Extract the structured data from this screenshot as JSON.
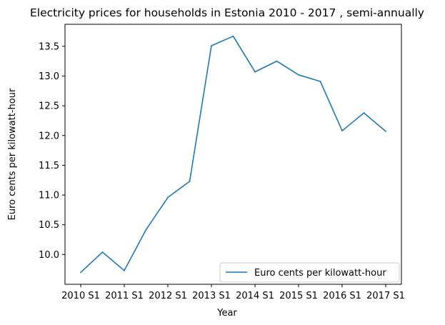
{
  "chart_data": {
    "type": "line",
    "title": "Electricity prices for households in Estonia 2010 - 2017 , semi-annually",
    "xlabel": "Year",
    "ylabel": "Euro cents per kilowatt-hour",
    "x": [
      "2010 S1",
      "2010 S2",
      "2011 S1",
      "2011 S2",
      "2012 S1",
      "2012 S2",
      "2013 S1",
      "2013 S2",
      "2014 S1",
      "2014 S2",
      "2015 S1",
      "2015 S2",
      "2016 S1",
      "2016 S2",
      "2017 S1"
    ],
    "x_ticks": [
      "2010 S1",
      "2011 S1",
      "2012 S1",
      "2013 S1",
      "2014 S1",
      "2015 S1",
      "2016 S1",
      "2017 S1"
    ],
    "series": [
      {
        "name": "Euro cents per kilowatt-hour",
        "color": "#1f77b4",
        "values": [
          9.7,
          10.04,
          9.73,
          10.42,
          10.96,
          11.23,
          13.51,
          13.67,
          13.07,
          13.25,
          13.02,
          12.91,
          12.08,
          12.38,
          12.07
        ]
      }
    ],
    "y_ticks": [
      "10.0",
      "10.5",
      "11.0",
      "11.5",
      "12.0",
      "12.5",
      "13.0",
      "13.5"
    ],
    "ylim": [
      9.5,
      13.87
    ],
    "grid": false,
    "legend_position": "lower-right"
  }
}
